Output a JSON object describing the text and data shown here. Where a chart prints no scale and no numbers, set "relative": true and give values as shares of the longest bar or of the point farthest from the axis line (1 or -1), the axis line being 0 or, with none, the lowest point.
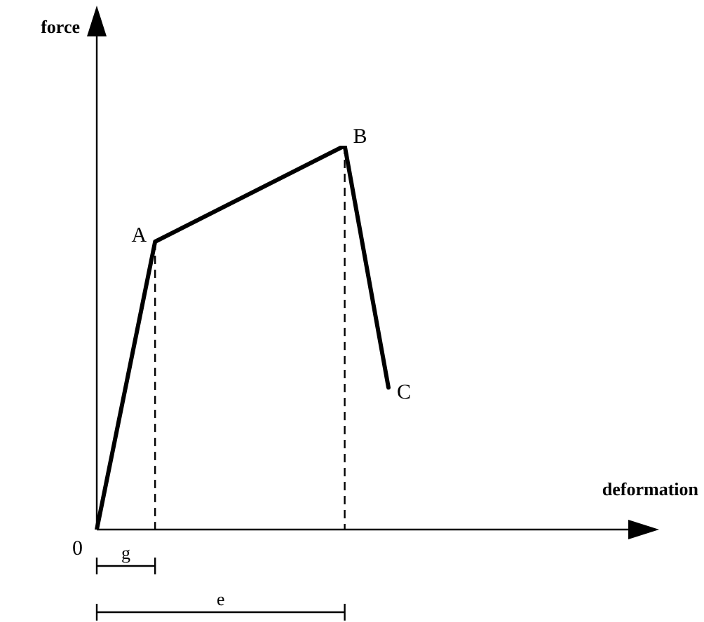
{
  "chart_data": {
    "type": "line",
    "relative": true,
    "legend": false,
    "marker": "none",
    "categories": [
      null,
      null,
      null,
      null,
      null,
      null,
      null,
      null,
      null,
      null,
      null,
      null,
      null,
      null,
      null,
      null,
      null,
      null,
      null,
      null,
      null
    ],
    "series": [
      {
        "values": [
          0,
          null,
          null,
          null,
          0.75,
          null,
          null,
          null,
          null,
          null,
          null,
          null,
          null,
          null,
          null,
          null,
          null,
          1,
          null,
          null,
          0.37
        ],
        "color": "#000000",
        "line_style": "solid"
      }
    ],
    "annotations": [
      "force",
      "deformation",
      "0",
      "A",
      "B",
      "C",
      "g",
      "e"
    ]
  }
}
